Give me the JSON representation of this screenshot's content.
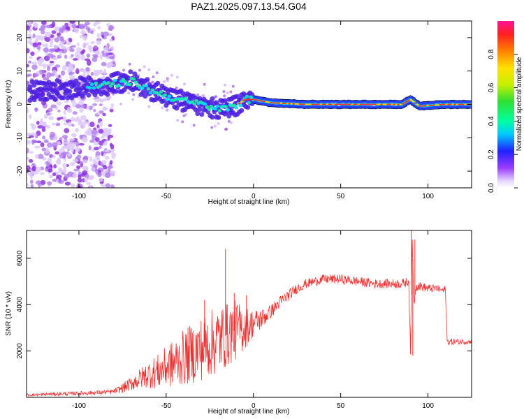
{
  "title": "PAZ1.2025.097.13.54.G04",
  "chart_data": [
    {
      "type": "heatmap",
      "title": "PAZ1.2025.097.13.54.G04",
      "xlabel": "Height of straight line (km)",
      "ylabel": "Frequency (Hz)",
      "xlim": [
        -130,
        125
      ],
      "ylim": [
        -25,
        25
      ],
      "xticks": [
        "-100",
        "-50",
        "0",
        "50",
        "100"
      ],
      "yticks": [
        "-20",
        "-10",
        "0",
        "10",
        "20"
      ],
      "colorbar": {
        "label": "Normalized spectral amplitude",
        "range": [
          0,
          1
        ],
        "ticks": [
          "0.0",
          "0.2",
          "0.4",
          "0.6",
          "0.8"
        ]
      },
      "ridge": {
        "description_points_height_km": [
          -128,
          -110,
          -90,
          -75,
          -70,
          -60,
          -50,
          -40,
          -30,
          -20,
          -10,
          -5,
          0,
          10,
          30,
          50,
          70,
          85,
          90,
          95,
          110,
          125
        ],
        "frequency_hz": [
          4,
          4.5,
          5.5,
          6.5,
          7,
          4.5,
          2.5,
          1,
          0,
          -1.5,
          -0.5,
          1.5,
          1.5,
          0.5,
          0,
          0,
          0,
          0,
          1.5,
          -0.5,
          0,
          0
        ]
      }
    },
    {
      "type": "line",
      "xlabel": "Height of straight line (km)",
      "ylabel": "SNR (10 * v/v)",
      "xlim": [
        -130,
        125
      ],
      "ylim": [
        0,
        7200
      ],
      "xticks": [
        "-100",
        "-50",
        "0",
        "50",
        "100"
      ],
      "yticks": [
        "2000",
        "4000",
        "6000"
      ],
      "color": "#e83232",
      "envelope_x": [
        -130,
        -110,
        -90,
        -80,
        -75,
        -70,
        -65,
        -60,
        -55,
        -50,
        -45,
        -40,
        -35,
        -30,
        -25,
        -20,
        -15,
        -10,
        -5,
        0,
        5,
        10,
        15,
        20,
        25,
        30,
        35,
        40,
        50,
        60,
        70,
        80,
        85,
        89,
        90,
        91,
        92,
        93,
        95,
        100,
        105,
        109,
        110,
        111,
        115,
        125
      ],
      "envelope_y": [
        100,
        150,
        200,
        250,
        400,
        600,
        800,
        1000,
        1100,
        1300,
        1500,
        1700,
        1900,
        2100,
        2300,
        2500,
        2700,
        2900,
        3000,
        3200,
        3400,
        3700,
        4100,
        4400,
        4700,
        4900,
        5000,
        5100,
        5100,
        5000,
        4900,
        4900,
        4900,
        5000,
        2000,
        6800,
        4000,
        4800,
        4800,
        4700,
        4700,
        4600,
        4700,
        2400,
        2400,
        2400
      ],
      "noise_amp_x": [
        -130,
        -80,
        -70,
        -60,
        -50,
        -40,
        -30,
        -20,
        -10,
        0,
        10,
        20,
        30,
        60,
        88,
        95,
        110,
        125
      ],
      "noise_amp_y": [
        60,
        100,
        300,
        600,
        900,
        1200,
        1400,
        1500,
        1300,
        600,
        300,
        250,
        200,
        200,
        200,
        200,
        150,
        100
      ],
      "spikes": [
        {
          "x": -16,
          "y": 6400
        },
        {
          "x": -11,
          "y": 4500
        },
        {
          "x": -4,
          "y": 4400
        },
        {
          "x": -28,
          "y": 4200
        },
        {
          "x": 90.5,
          "y": 7200
        },
        {
          "x": 92.5,
          "y": 6800
        },
        {
          "x": 91.3,
          "y": 1800
        }
      ]
    }
  ]
}
